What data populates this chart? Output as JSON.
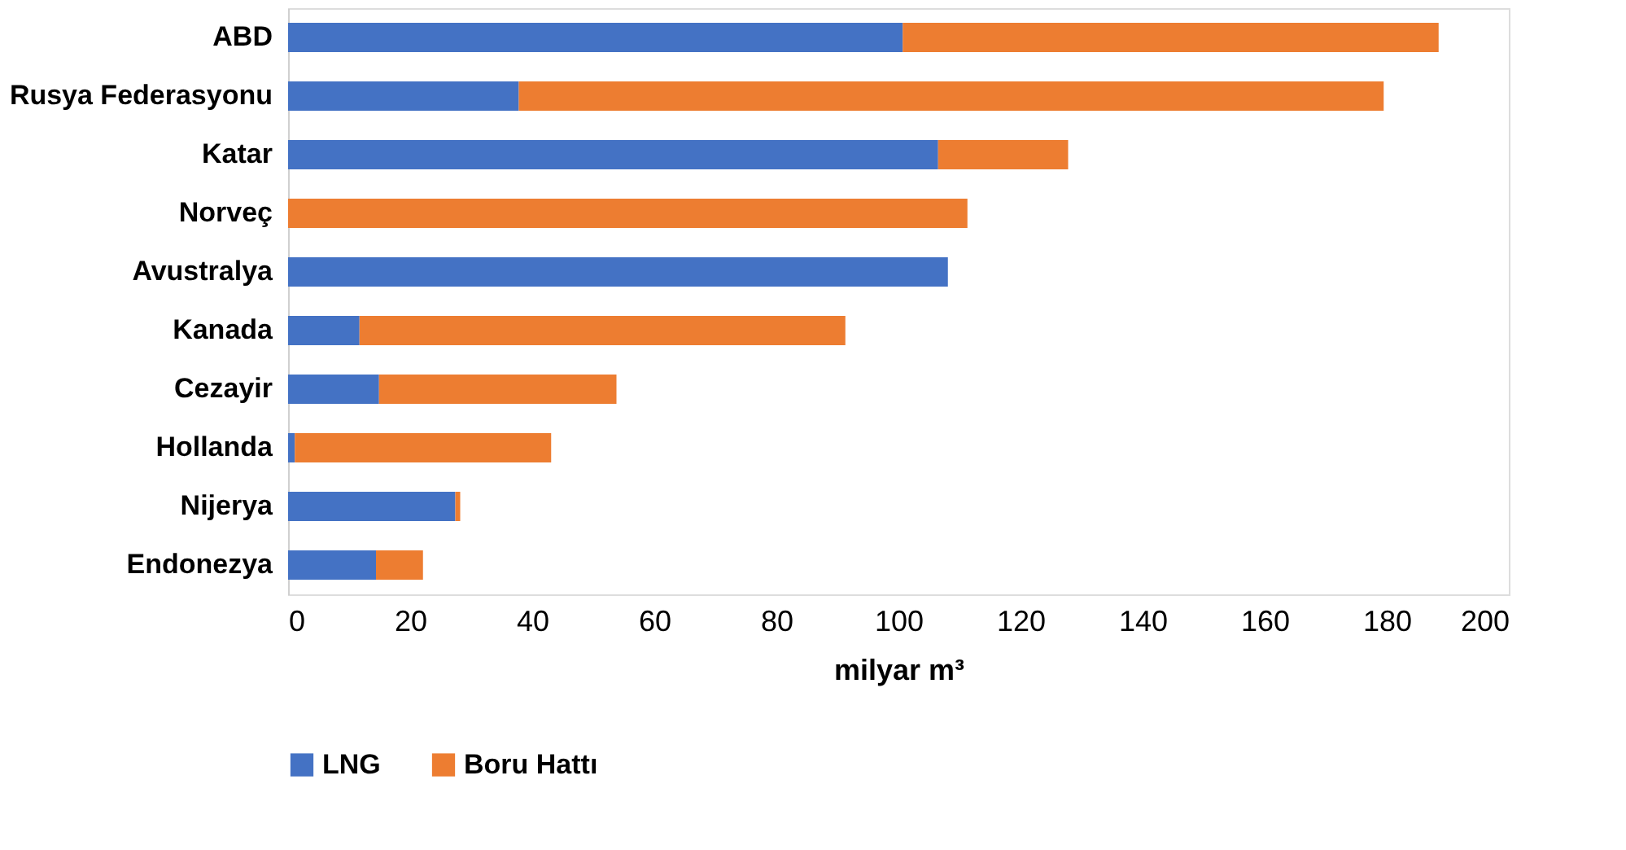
{
  "chart_data": {
    "type": "bar",
    "orientation": "horizontal",
    "stacked": true,
    "xlabel": "milyar m³",
    "categories": [
      "ABD",
      "Rusya Federasyonu",
      "Katar",
      "Norveç",
      "Avustralya",
      "Kanada",
      "Cezayir",
      "Hollanda",
      "Nijerya",
      "Endonezya"
    ],
    "series": [
      {
        "name": "LNG",
        "color": "#4472c4",
        "values": [
          100.7,
          37.8,
          106.5,
          0,
          108.1,
          11.7,
          14.9,
          1.1,
          27.4,
          14.4
        ]
      },
      {
        "name": "Boru Hattı",
        "color": "#ed7d31",
        "values": [
          87.8,
          141.7,
          21.3,
          111.3,
          0,
          79.6,
          38.9,
          42,
          0.8,
          7.7
        ]
      }
    ],
    "xlim": [
      0,
      200
    ],
    "xticks": [
      0,
      20,
      40,
      60,
      80,
      100,
      120,
      140,
      160,
      180,
      200
    ],
    "grid": false,
    "legend": "bottom"
  }
}
